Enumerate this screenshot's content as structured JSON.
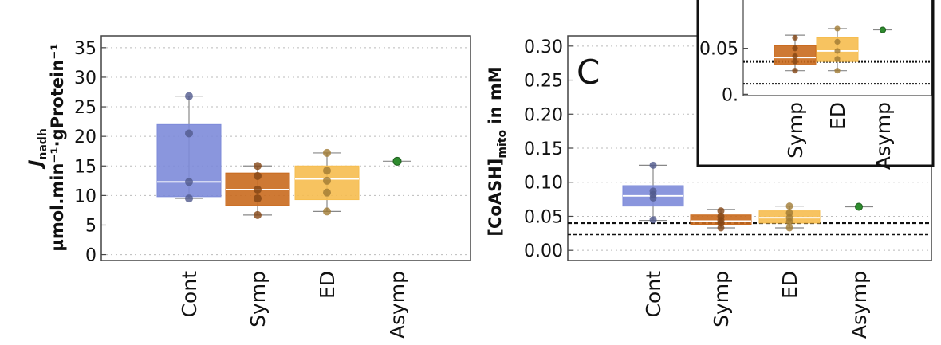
{
  "chart_data": [
    {
      "type": "box",
      "categories": [
        "Cont",
        "Symp",
        "ED",
        "Asymp"
      ],
      "colors": [
        "#7d8bd9",
        "#c96a1e",
        "#f6bd4f",
        "#2e8b2e"
      ],
      "ylabel_main": "J",
      "ylabel_sub": "nadh",
      "ylabel_units": "µmol.min⁻¹·gProtein⁻¹",
      "yticks": [
        "35",
        "30",
        "25",
        "20",
        "15",
        "10",
        "5",
        "0"
      ],
      "ylim": [
        -1,
        37
      ],
      "boxes": [
        {
          "category": "Cont",
          "min": 9.5,
          "q1": 9.8,
          "median": 12.3,
          "q3": 22,
          "max": 26.8,
          "points": [
            26.8,
            20.5,
            12.3,
            9.5
          ]
        },
        {
          "category": "Symp",
          "min": 6.7,
          "q1": 8.3,
          "median": 11,
          "q3": 13.8,
          "max": 15,
          "points": [
            15,
            13.3,
            11,
            9.5,
            6.7
          ]
        },
        {
          "category": "ED",
          "min": 7.3,
          "q1": 9.3,
          "median": 12.8,
          "q3": 15,
          "max": 17.2,
          "points": [
            17.2,
            14.2,
            12.5,
            10.5,
            7.3
          ]
        },
        {
          "category": "Asymp",
          "points": [
            15.8
          ]
        }
      ]
    },
    {
      "type": "box",
      "panel_label": "C",
      "categories": [
        "Cont",
        "Symp",
        "ED",
        "Asymp"
      ],
      "colors": [
        "#7d8bd9",
        "#c96a1e",
        "#f6bd4f",
        "#2e8b2e"
      ],
      "ylabel": "[CoASH]",
      "ylabel_sub": "mito",
      "ylabel_suffix": " in mM",
      "yticks": [
        "0.30",
        "0.25",
        "0.20",
        "0.15",
        "0.10",
        "0.05",
        "0.00"
      ],
      "ylim": [
        -0.015,
        0.315
      ],
      "reference_lines": [
        0.04,
        0.023
      ],
      "boxes": [
        {
          "category": "Cont",
          "min": 0.044,
          "q1": 0.065,
          "median": 0.08,
          "q3": 0.095,
          "max": 0.125,
          "points": [
            0.125,
            0.087,
            0.082,
            0.077,
            0.045
          ]
        },
        {
          "category": "Symp",
          "min": 0.033,
          "q1": 0.038,
          "median": 0.043,
          "q3": 0.052,
          "max": 0.06,
          "points": [
            0.058,
            0.05,
            0.044,
            0.04,
            0.033
          ]
        },
        {
          "category": "ED",
          "min": 0.033,
          "q1": 0.04,
          "median": 0.048,
          "q3": 0.058,
          "max": 0.065,
          "points": [
            0.065,
            0.055,
            0.048,
            0.042,
            0.033
          ]
        },
        {
          "category": "Asymp",
          "points": [
            0.064
          ]
        }
      ]
    },
    {
      "type": "box",
      "role": "inset",
      "categories": [
        "Symp",
        "ED",
        "Asymp"
      ],
      "colors": [
        "#c96a1e",
        "#f6bd4f",
        "#2e8b2e"
      ],
      "yticks": [
        "0.05",
        "0."
      ],
      "reference_lines": [
        0.04,
        0.023
      ],
      "boxes": [
        {
          "category": "Symp",
          "min": 0.033,
          "q1": 0.038,
          "median": 0.043,
          "q3": 0.052,
          "max": 0.06,
          "points": [
            0.058,
            0.05,
            0.044,
            0.04,
            0.033
          ]
        },
        {
          "category": "ED",
          "min": 0.033,
          "q1": 0.04,
          "median": 0.048,
          "q3": 0.058,
          "max": 0.065,
          "points": [
            0.065,
            0.055,
            0.048,
            0.042,
            0.033
          ]
        },
        {
          "category": "Asymp",
          "points": [
            0.064
          ]
        }
      ]
    }
  ]
}
